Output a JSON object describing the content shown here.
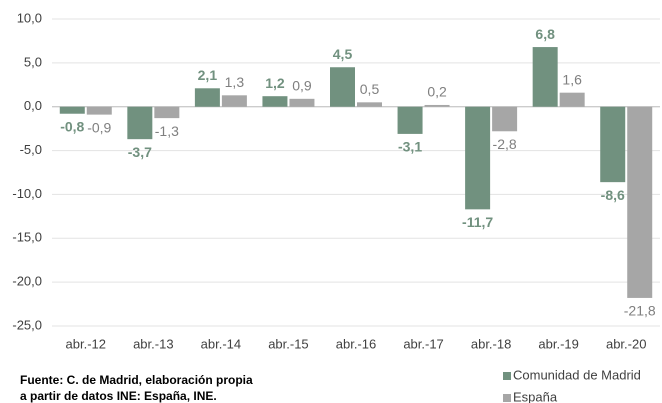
{
  "chart_data": {
    "type": "bar",
    "categories": [
      "abr.-12",
      "abr.-13",
      "abr.-14",
      "abr.-15",
      "abr.-16",
      "abr.-17",
      "abr.-18",
      "abr.-19",
      "abr.-20"
    ],
    "series": [
      {
        "name": "Comunidad de Madrid",
        "color": "#71917f",
        "values": [
          -0.8,
          -3.7,
          2.1,
          1.2,
          4.5,
          -3.1,
          -11.7,
          6.8,
          -8.6
        ],
        "value_labels": [
          "-0,8",
          "-3,7",
          "2,1",
          "1,2",
          "4,5",
          "-3,1",
          "-11,7",
          "6,8",
          "-8,6"
        ]
      },
      {
        "name": "España",
        "color": "#a6a6a6",
        "values": [
          -0.9,
          -1.3,
          1.3,
          0.9,
          0.5,
          0.2,
          -2.8,
          1.6,
          -21.8
        ],
        "value_labels": [
          "-0,9",
          "-1,3",
          "1,3",
          "0,9",
          "0,5",
          "0,2",
          "-2,8",
          "1,6",
          "-21,8"
        ]
      }
    ],
    "ylim": [
      -25,
      10
    ],
    "yticks": [
      {
        "value": 10,
        "label": "10,0"
      },
      {
        "value": 5,
        "label": "5,0"
      },
      {
        "value": 0,
        "label": "0,0"
      },
      {
        "value": -5,
        "label": "-5,0"
      },
      {
        "value": -10,
        "label": "-10,0"
      },
      {
        "value": -15,
        "label": "-15,0"
      },
      {
        "value": -20,
        "label": "-20,0"
      },
      {
        "value": -25,
        "label": "-25,0"
      }
    ],
    "grid": true,
    "source": [
      "Fuente: C. de Madrid, elaboración propia",
      "a partir de datos INE: España, INE."
    ]
  }
}
